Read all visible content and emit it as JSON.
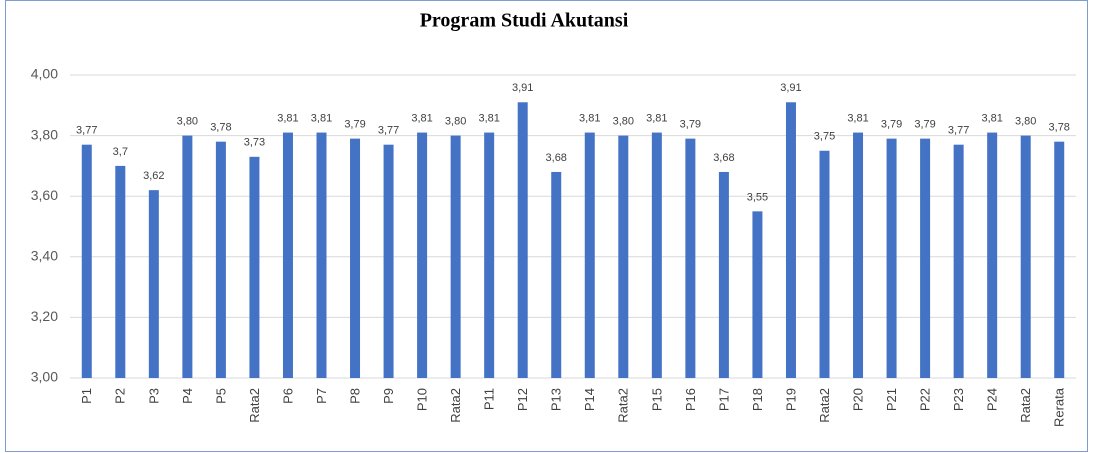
{
  "chart_data": {
    "type": "bar",
    "title": "Program Studi Akutansi",
    "categories": [
      "P1",
      "P2",
      "P3",
      "P4",
      "P5",
      "Rata2",
      "P6",
      "P7",
      "P8",
      "P9",
      "P10",
      "Rata2",
      "P11",
      "P12",
      "P13",
      "P14",
      "Rata2",
      "P15",
      "P16",
      "P17",
      "P18",
      "P19",
      "Rata2",
      "P20",
      "P21",
      "P22",
      "P23",
      "P24",
      "Rata2",
      "Rerata"
    ],
    "values": [
      3.77,
      3.7,
      3.62,
      3.8,
      3.78,
      3.73,
      3.81,
      3.81,
      3.79,
      3.77,
      3.81,
      3.8,
      3.81,
      3.91,
      3.68,
      3.81,
      3.8,
      3.81,
      3.79,
      3.68,
      3.55,
      3.91,
      3.75,
      3.81,
      3.79,
      3.79,
      3.77,
      3.81,
      3.8,
      3.78
    ],
    "value_labels": [
      "3,77",
      "3,7",
      "3,62",
      "3,80",
      "3,78",
      "3,73",
      "3,81",
      "3,81",
      "3,79",
      "3,77",
      "3,81",
      "3,80",
      "3,81",
      "3,91",
      "3,68",
      "3,81",
      "3,80",
      "3,81",
      "3,79",
      "3,68",
      "3,55",
      "3,91",
      "3,75",
      "3,81",
      "3,79",
      "3,79",
      "3,77",
      "3,81",
      "3,80",
      "3,78"
    ],
    "color": "#4472c4",
    "ylim": [
      3.0,
      4.0
    ],
    "yticks": [
      {
        "value": 3.0,
        "label": "3,00"
      },
      {
        "value": 3.2,
        "label": "3,20"
      },
      {
        "value": 3.4,
        "label": "3,40"
      },
      {
        "value": 3.6,
        "label": "3,60"
      },
      {
        "value": 3.8,
        "label": "3,80"
      },
      {
        "value": 4.0,
        "label": "4,00"
      }
    ],
    "grid": true
  }
}
